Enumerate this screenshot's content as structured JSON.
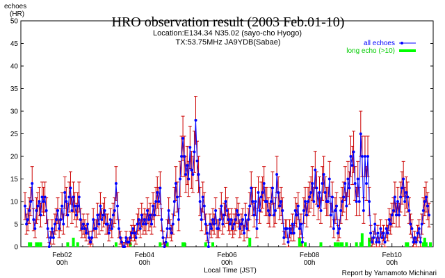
{
  "chart_data": {
    "type": "line",
    "title": "HRO observation result (2003 Feb.01-10)",
    "subtitle_lines": [
      "Location:E134.34 N35.02 (sayo-cho Hyogo)",
      "TX:53.75MHz JA9YDB(Sabae)"
    ],
    "ylabel_lines": [
      "echoes",
      "(HR)"
    ],
    "xlabel": "Local Time (JST)",
    "credit": "Report by Yamamoto Michinari",
    "ylim": [
      0,
      50
    ],
    "yticks": [
      0,
      5,
      10,
      15,
      20,
      25,
      30,
      35,
      40,
      45,
      50
    ],
    "xlim_days": [
      1.0,
      11.0
    ],
    "xticks": [
      {
        "day": 2,
        "date": "Feb02",
        "hour": "00h"
      },
      {
        "day": 4,
        "date": "Feb04",
        "hour": "00h"
      },
      {
        "day": 6,
        "date": "Feb06",
        "hour": "00h"
      },
      {
        "day": 8,
        "date": "Feb08",
        "hour": "00h"
      },
      {
        "day": 10,
        "date": "Feb10",
        "hour": "00h"
      }
    ],
    "grid": false,
    "legend_position": "top-right",
    "series": [
      {
        "name": "all echoes",
        "color": "#0000ff",
        "values": [
          9,
          5,
          6,
          8,
          10,
          14,
          6,
          4,
          8,
          9,
          10,
          7,
          11,
          10,
          11,
          8,
          4,
          0,
          2,
          4,
          2,
          5,
          6,
          8,
          4,
          6,
          9,
          5,
          12,
          10,
          7,
          11,
          13,
          8,
          11,
          9,
          7,
          9,
          11,
          6,
          4,
          5,
          4,
          3,
          5,
          2,
          1,
          2,
          6,
          4,
          4,
          7,
          5,
          9,
          6,
          7,
          8,
          5,
          5,
          3,
          6,
          4,
          7,
          8,
          14,
          9,
          4,
          2,
          1,
          0,
          0,
          2,
          1,
          1,
          2,
          3,
          4,
          3,
          2,
          5,
          6,
          4,
          7,
          5,
          6,
          5,
          8,
          6,
          7,
          5,
          9,
          7,
          10,
          12,
          10,
          13,
          6,
          2,
          0,
          1,
          4,
          8,
          4,
          3,
          5,
          10,
          14,
          11,
          6,
          15,
          20,
          24,
          20,
          16,
          18,
          15,
          22,
          17,
          16,
          21,
          28,
          19,
          16,
          10,
          6,
          11,
          9,
          5,
          3,
          0,
          5,
          4,
          6,
          5,
          8,
          4,
          4,
          6,
          9,
          5,
          7,
          10,
          8,
          6,
          5,
          6,
          4,
          5,
          6,
          8,
          7,
          4,
          5,
          6,
          3,
          7,
          4,
          6,
          9,
          13,
          10,
          7,
          10,
          4,
          12,
          8,
          11,
          12,
          14,
          10,
          10,
          8,
          7,
          10,
          13,
          7,
          8,
          16,
          12,
          9,
          10,
          8,
          2,
          4,
          4,
          1,
          4,
          3,
          5,
          3,
          8,
          7,
          9,
          4,
          5,
          1,
          8,
          10,
          7,
          10,
          11,
          12,
          14,
          10,
          17,
          13,
          9,
          12,
          8,
          14,
          16,
          12,
          10,
          10,
          15,
          7,
          11,
          4,
          8,
          9,
          3,
          4,
          8,
          10,
          11,
          14,
          9,
          15,
          13,
          20,
          18,
          21,
          14,
          10,
          15,
          10,
          25,
          20,
          8,
          20,
          14,
          20,
          10,
          3,
          1,
          2,
          5,
          1,
          3,
          1,
          4,
          2,
          3,
          1,
          4,
          3,
          6,
          5,
          7,
          8,
          11,
          7,
          10,
          7,
          11,
          13,
          15,
          10,
          12,
          11,
          8,
          5,
          4,
          1,
          2,
          1,
          3,
          4,
          1,
          5,
          8,
          10,
          11,
          9,
          7
        ]
      },
      {
        "name": "long echo (>10)",
        "color": "#00ff00",
        "values": [
          0,
          0,
          0,
          1,
          1,
          0,
          0,
          0,
          1,
          1,
          0,
          1,
          0,
          0,
          0,
          0,
          0,
          0,
          0,
          0,
          0,
          0,
          0,
          0,
          0,
          0,
          0,
          0,
          0,
          0,
          1,
          0,
          0,
          0,
          2,
          0,
          0,
          1,
          0,
          0,
          0,
          0,
          0,
          0,
          0,
          0,
          0,
          0,
          0,
          0,
          0,
          0,
          0,
          0,
          0,
          0,
          0,
          0,
          0,
          0,
          0,
          0,
          0,
          0,
          1,
          0,
          0,
          0,
          0,
          0,
          0,
          0,
          0,
          0,
          1,
          0,
          0,
          0,
          0,
          0,
          0,
          0,
          0,
          0,
          0,
          0,
          0,
          0,
          0,
          0,
          0,
          0,
          0,
          0,
          0,
          1,
          0,
          0,
          0,
          0,
          1,
          0,
          0,
          0,
          0,
          0,
          0,
          0,
          0,
          0,
          0,
          1,
          1,
          0,
          0,
          0,
          0,
          0,
          0,
          0,
          0,
          0,
          0,
          0,
          0,
          0,
          0,
          1,
          0,
          0,
          0,
          0,
          1,
          0,
          0,
          0,
          0,
          0,
          0,
          0,
          0,
          0,
          0,
          0,
          0,
          0,
          0,
          0,
          0,
          0,
          0,
          0,
          0,
          0,
          0,
          0,
          0,
          0,
          2,
          0,
          0,
          0,
          0,
          0,
          0,
          0,
          0,
          0,
          0,
          0,
          0,
          0,
          0,
          0,
          0,
          0,
          0,
          0,
          0,
          0,
          0,
          0,
          0,
          0,
          0,
          0,
          0,
          0,
          0,
          0,
          0,
          0,
          0,
          2,
          1,
          0,
          0,
          1,
          0,
          0,
          0,
          0,
          0,
          0,
          0,
          0,
          0,
          0,
          1,
          0,
          0,
          0,
          0,
          0,
          0,
          0,
          0,
          0,
          1,
          0,
          1,
          0,
          1,
          1,
          0,
          0,
          1,
          0,
          0,
          0,
          0,
          0,
          0,
          1,
          0,
          0,
          1,
          3,
          0,
          0,
          0,
          0,
          2,
          0,
          0,
          0,
          0,
          0,
          0,
          0,
          0,
          0,
          0,
          0,
          0,
          0,
          0,
          0,
          0,
          0,
          0,
          0,
          0,
          0,
          0,
          0,
          0,
          0,
          1,
          1,
          0,
          0,
          0,
          0,
          0,
          0,
          0,
          0,
          0,
          0,
          1,
          2,
          1,
          0,
          0,
          1,
          0,
          0,
          0,
          0,
          0,
          0,
          0,
          0,
          0
        ]
      }
    ],
    "error_bar_color": "#cc0000"
  }
}
